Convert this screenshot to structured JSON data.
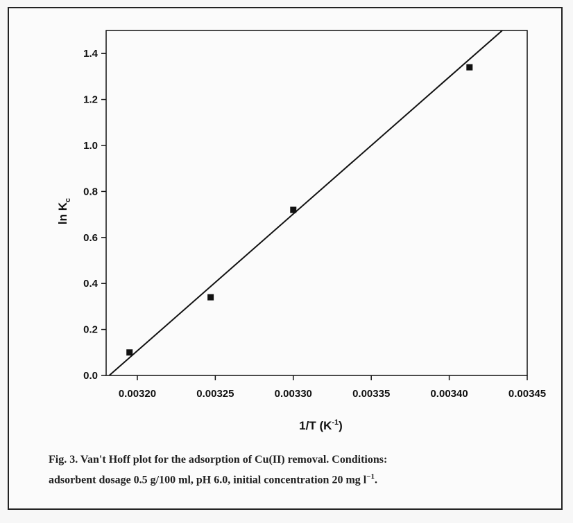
{
  "chart_data": {
    "type": "scatter",
    "xlabel": "1/T (K",
    "xlabel_sup": "-1",
    "xlabel_close": ")",
    "ylabel": "ln K",
    "ylabel_sub": "c",
    "xlim": [
      0.00318,
      0.00345
    ],
    "ylim": [
      0.0,
      1.5
    ],
    "x_ticks": [
      0.0032,
      0.00325,
      0.0033,
      0.00335,
      0.0034,
      0.00345
    ],
    "x_tick_labels": [
      "0.00320",
      "0.00325",
      "0.00330",
      "0.00335",
      "0.00340",
      "0.00345"
    ],
    "y_ticks": [
      0.0,
      0.2,
      0.4,
      0.6,
      0.8,
      1.0,
      1.2,
      1.4
    ],
    "y_tick_labels": [
      "0.0",
      "0.2",
      "0.4",
      "0.6",
      "0.8",
      "1.0",
      "1.2",
      "1.4"
    ],
    "grid": false,
    "series": [
      {
        "points": [
          {
            "x": 0.003195,
            "y": 0.1
          },
          {
            "x": 0.003247,
            "y": 0.34
          },
          {
            "x": 0.0033,
            "y": 0.72
          },
          {
            "x": 0.003413,
            "y": 1.34
          }
        ],
        "marker": "square",
        "color": "#111111"
      }
    ],
    "fit_line": {
      "x1": 0.003182,
      "y1": 0.0,
      "x2": 0.003434,
      "y2": 1.5,
      "color": "#111111"
    }
  },
  "caption": {
    "line1": "Fig. 3. Van't Hoff plot for the adsorption of Cu(II) removal. Conditions:",
    "line2": "adsorbent dosage 0.5 g/100 ml, pH 6.0, initial concentration 20 mg l",
    "line2_sup": "−1",
    "line2_end": "."
  }
}
